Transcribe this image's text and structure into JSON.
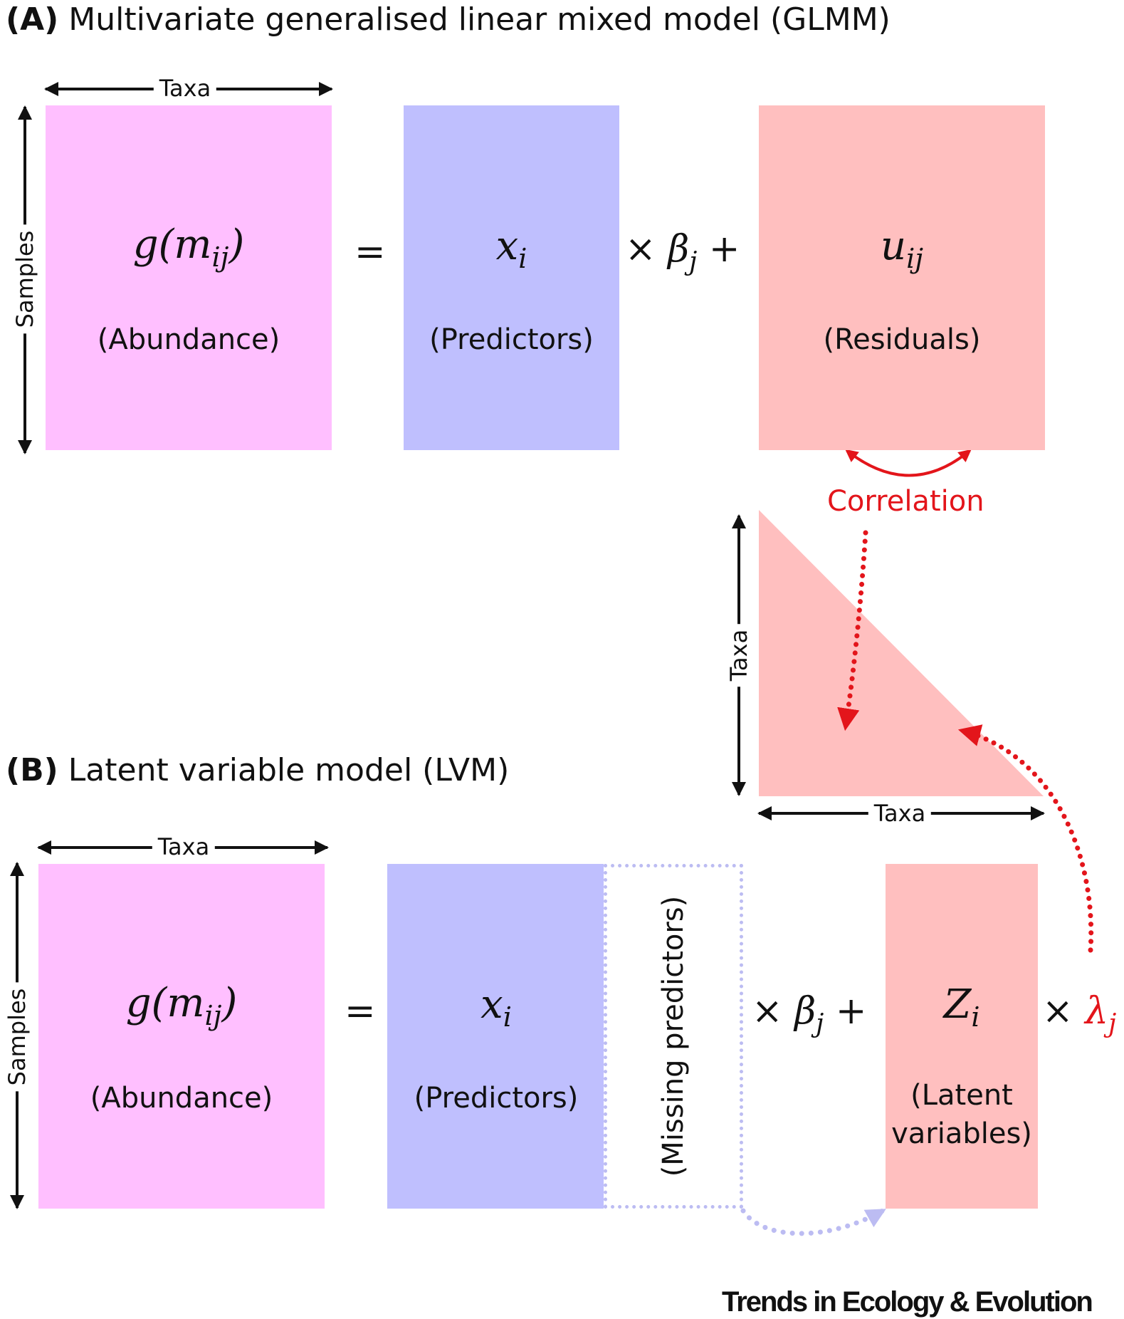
{
  "panel_a": {
    "heading_tag": "(A)",
    "heading_text": "Multivariate generalised linear mixed model (GLMM)",
    "cols_label": "Taxa",
    "rows_label": "Samples",
    "abundance": {
      "symbol": "g(m",
      "subscript": "ij",
      "close": ")",
      "caption": "(Abundance)"
    },
    "equals": "=",
    "predictors": {
      "symbol": "x",
      "subscript": "i",
      "caption": "(Predictors)"
    },
    "beta_term": {
      "times": "×",
      "symbol": "β",
      "subscript": "j",
      "plus": "+"
    },
    "residuals": {
      "symbol": "u",
      "subscript": "ij",
      "caption": "(Residuals)"
    },
    "correlation_label": "Correlation",
    "matrix_rows_label": "Taxa",
    "matrix_cols_label": "Taxa"
  },
  "panel_b": {
    "heading_tag": "(B)",
    "heading_text": "Latent variable model (LVM)",
    "cols_label": "Taxa",
    "rows_label": "Samples",
    "abundance": {
      "symbol": "g(m",
      "subscript": "ij",
      "close": ")",
      "caption": "(Abundance)"
    },
    "equals": "=",
    "predictors": {
      "symbol": "x",
      "subscript": "i",
      "caption": "(Predictors)"
    },
    "missing_label": "(Missing predictors)",
    "beta_term": {
      "times": "×",
      "symbol": "β",
      "subscript": "j",
      "plus": "+"
    },
    "latent": {
      "symbol": "Z",
      "subscript": "i",
      "caption_line1": "(Latent",
      "caption_line2": "variables)"
    },
    "lambda_term": {
      "times": "×",
      "symbol": "λ",
      "subscript": "j"
    }
  },
  "credit": "Trends in Ecology & Evolution",
  "colors": {
    "abundance": "#ffbfff",
    "predictors": "#bfbffe",
    "residuals": "#ffbfbf",
    "accent_red": "#e3151b",
    "missing_dots": "#bcbcf2"
  }
}
